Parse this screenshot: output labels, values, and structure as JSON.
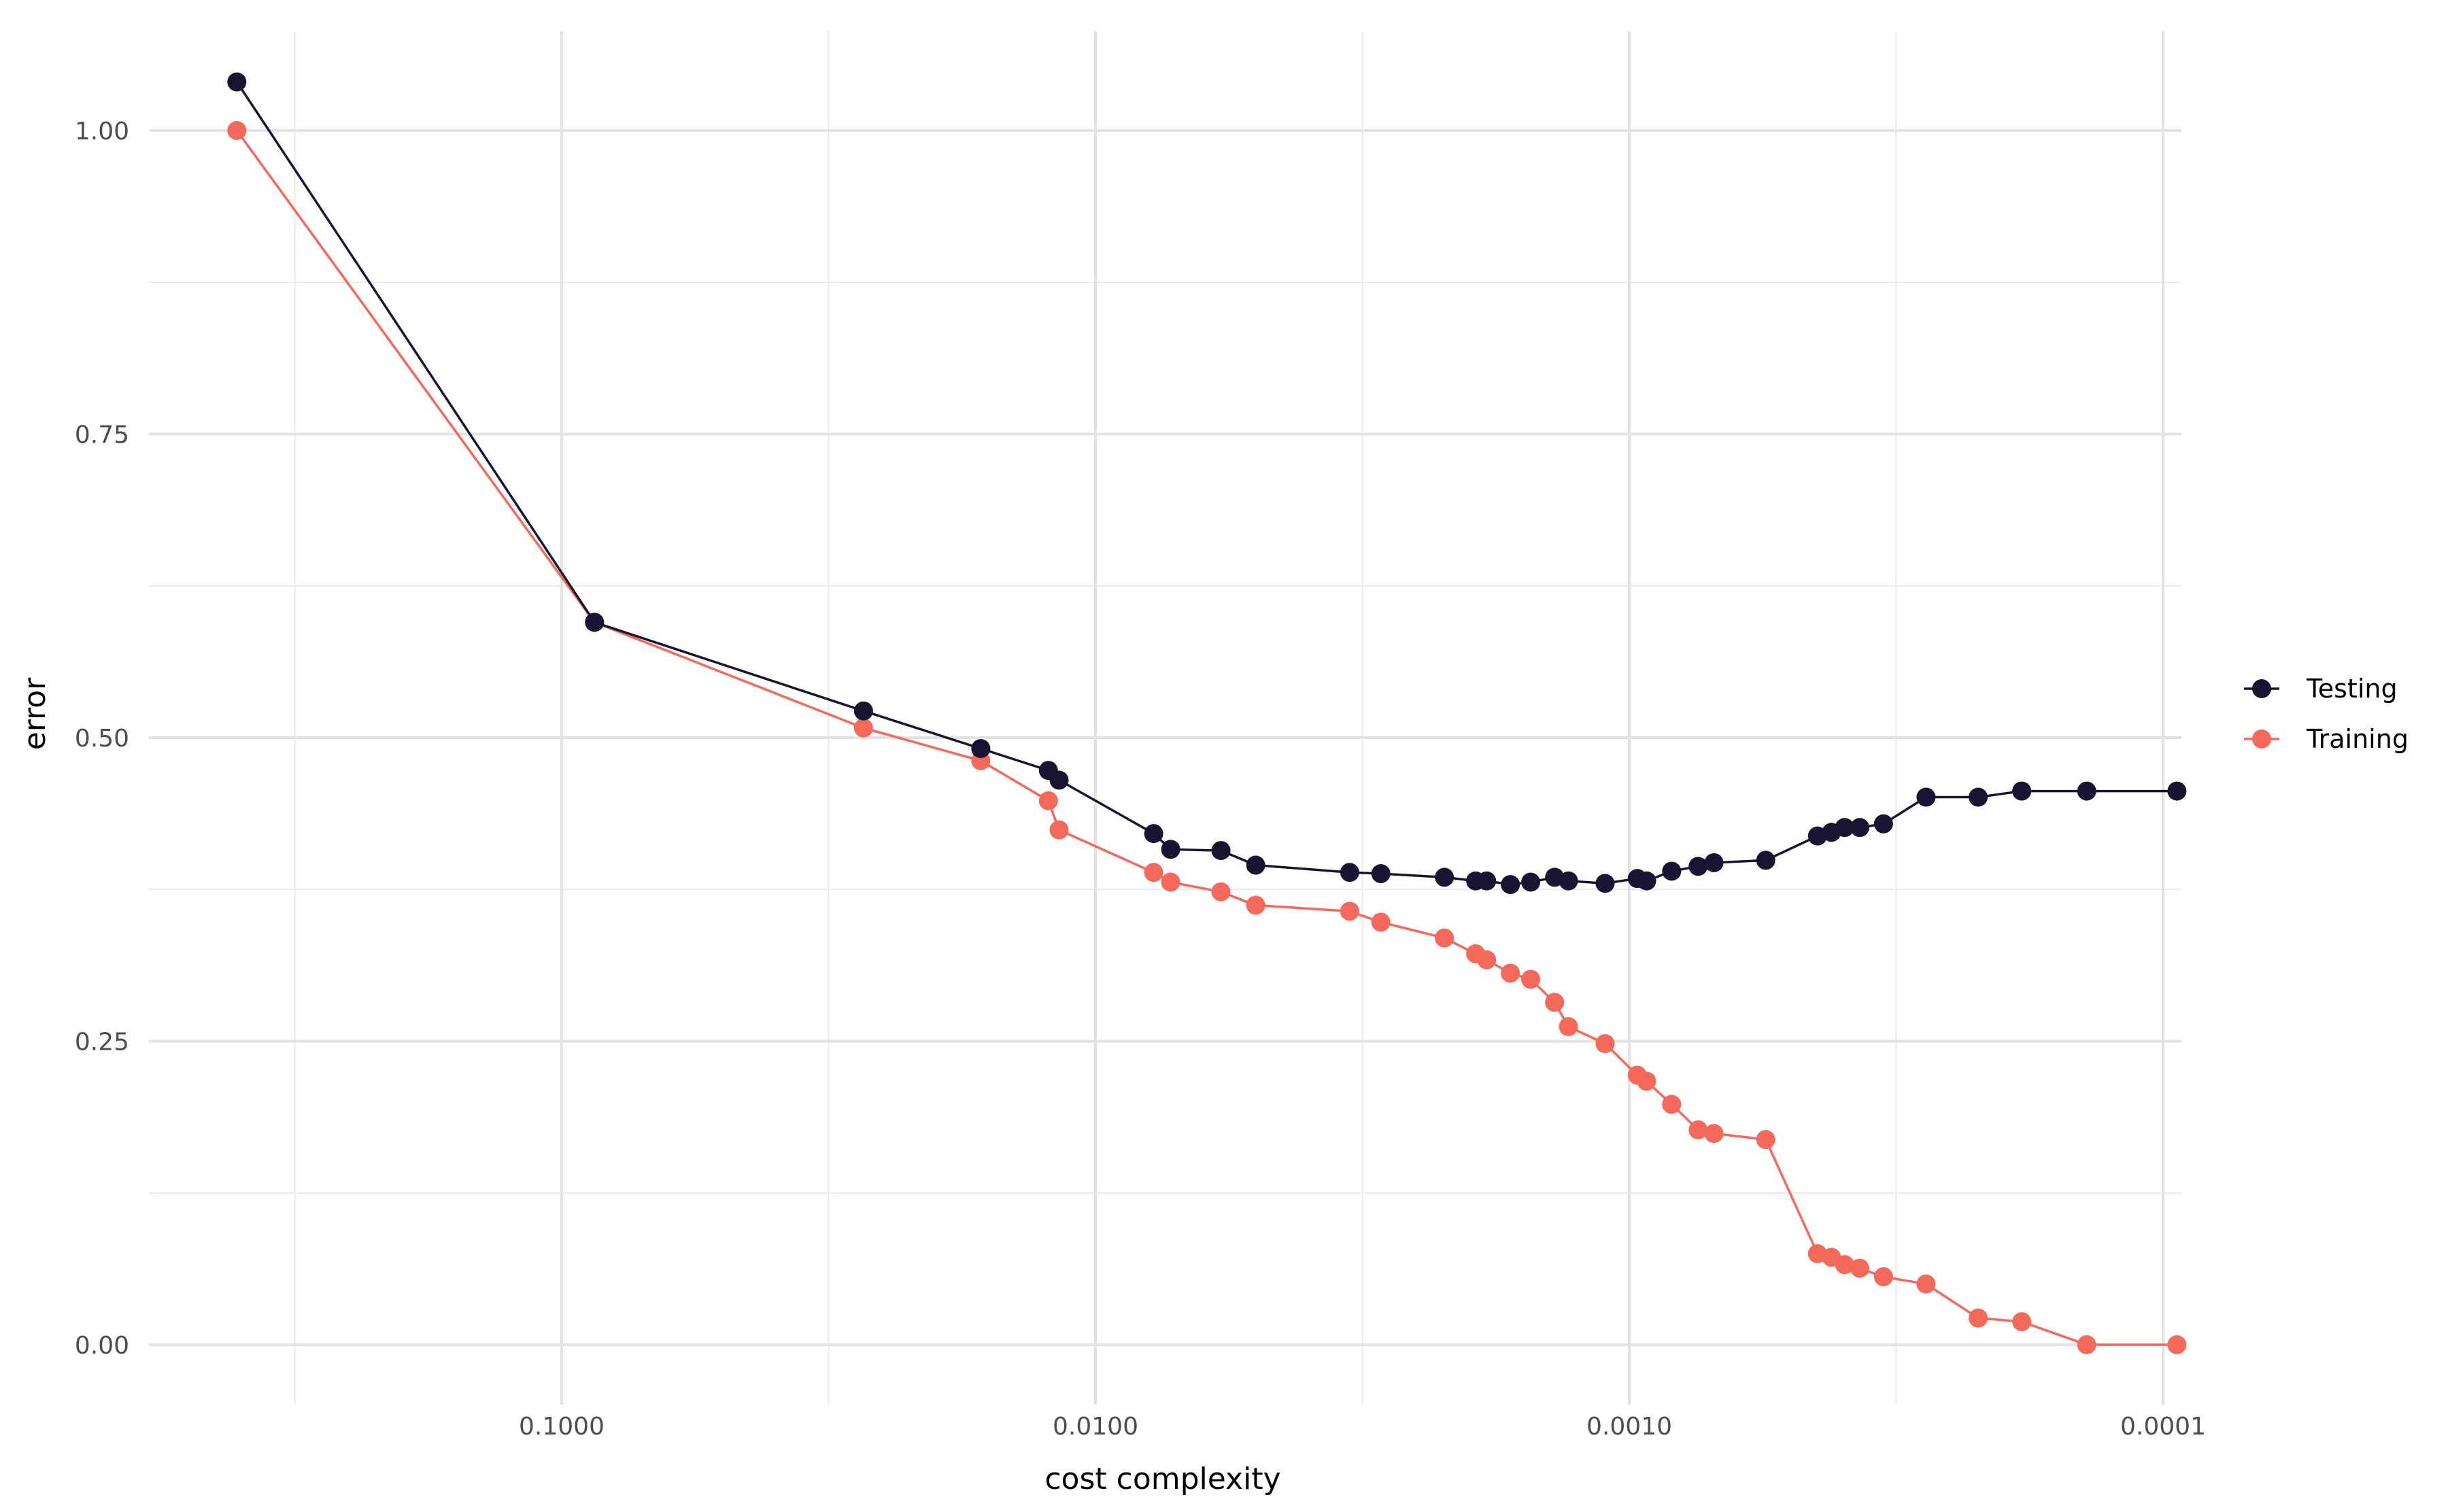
{
  "chart_data": {
    "type": "line",
    "title": "",
    "xlabel": "cost complexity",
    "ylabel": "error",
    "x_scale": "log10, reversed",
    "xlim": [
      0.55,
      9.2e-05
    ],
    "ylim": [
      -0.06,
      1.08
    ],
    "grid": true,
    "legend_position": "right",
    "x_ticks": [
      0.1,
      0.01,
      0.001,
      0.0001
    ],
    "x_tick_labels": [
      "0.1000",
      "0.0100",
      "0.0010",
      "0.0001"
    ],
    "y_ticks": [
      0,
      0.25,
      0.5,
      0.75,
      1.0
    ],
    "y_tick_labels": [
      "0.00",
      "0.25",
      "0.50",
      "0.75",
      "1.00"
    ],
    "x": [
      0.406,
      0.0868,
      0.0272,
      0.0164,
      0.01225,
      0.0117,
      0.00778,
      0.00723,
      0.00582,
      0.00501,
      0.00334,
      0.00292,
      0.00222,
      0.00194,
      0.00185,
      0.00167,
      0.00153,
      0.00138,
      0.0013,
      0.00111,
      0.000966,
      0.000928,
      0.000833,
      0.000743,
      0.000694,
      0.000555,
      0.000444,
      0.000418,
      0.000395,
      0.00037,
      0.000334,
      0.000278,
      0.000222,
      0.000184,
      0.000139,
      9.42e-05
    ],
    "series": [
      {
        "name": "Testing",
        "color": "#1a1433",
        "values": [
          1.04,
          0.595,
          0.522,
          0.491,
          0.473,
          0.465,
          0.421,
          0.408,
          0.407,
          0.395,
          0.389,
          0.388,
          0.385,
          0.382,
          0.382,
          0.379,
          0.381,
          0.385,
          0.382,
          0.38,
          0.384,
          0.382,
          0.39,
          0.394,
          0.397,
          0.399,
          0.419,
          0.422,
          0.426,
          0.426,
          0.429,
          0.451,
          0.451,
          0.456,
          0.456,
          0.456
        ]
      },
      {
        "name": "Training",
        "color": "#f4695a",
        "values": [
          1.0,
          0.595,
          0.508,
          0.481,
          0.448,
          0.424,
          0.389,
          0.381,
          0.373,
          0.362,
          0.357,
          0.348,
          0.335,
          0.322,
          0.317,
          0.306,
          0.301,
          0.282,
          0.262,
          0.248,
          0.222,
          0.217,
          0.198,
          0.177,
          0.174,
          0.169,
          0.075,
          0.072,
          0.066,
          0.063,
          0.056,
          0.05,
          0.022,
          0.019,
          0.0,
          0.0
        ]
      }
    ]
  }
}
